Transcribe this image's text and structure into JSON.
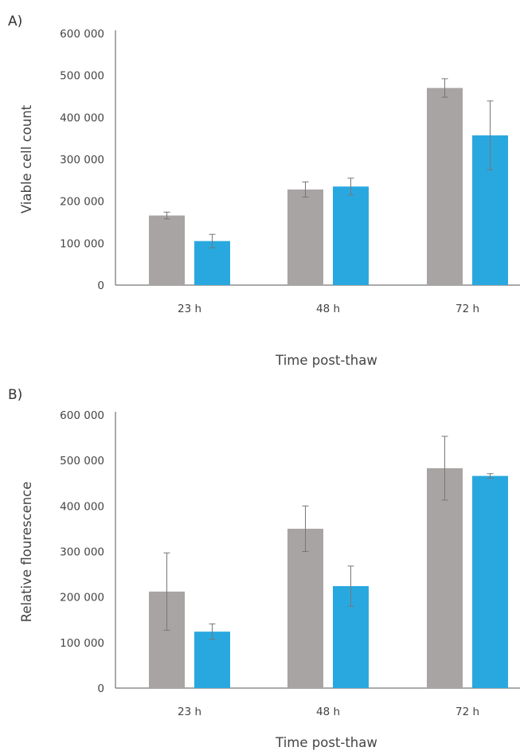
{
  "chart_data": [
    {
      "panel_label": "A)",
      "type": "bar",
      "xlabel": "Time post-thaw",
      "ylabel": "Viable cell count",
      "categories": [
        "23 h",
        "48 h",
        "72 h"
      ],
      "ylim": [
        0,
        600000
      ],
      "yticks": [
        {
          "value": 0,
          "label": "0"
        },
        {
          "value": 100000,
          "label": "100 000"
        },
        {
          "value": 200000,
          "label": "200 000"
        },
        {
          "value": 300000,
          "label": "300 000"
        },
        {
          "value": 400000,
          "label": "400 000"
        },
        {
          "value": 500000,
          "label": "500 000"
        },
        {
          "value": 600000,
          "label": "600 000"
        }
      ],
      "grid": false,
      "legend": "none",
      "series": [
        {
          "color": "#a8a4a3",
          "values": [
            166000,
            228000,
            470000
          ],
          "errors": [
            8000,
            18000,
            22000
          ]
        },
        {
          "color": "#29a8e0",
          "values": [
            105000,
            235000,
            357000
          ],
          "errors": [
            16000,
            20000,
            82000
          ]
        }
      ]
    },
    {
      "panel_label": "B)",
      "type": "bar",
      "xlabel": "Time post-thaw",
      "ylabel": "Relative flourescence",
      "categories": [
        "23 h",
        "48 h",
        "72 h"
      ],
      "ylim": [
        0,
        600000
      ],
      "yticks": [
        {
          "value": 0,
          "label": "0"
        },
        {
          "value": 100000,
          "label": "100 000"
        },
        {
          "value": 200000,
          "label": "200 000"
        },
        {
          "value": 300000,
          "label": "300 000"
        },
        {
          "value": 400000,
          "label": "400 000"
        },
        {
          "value": 500000,
          "label": "500 000"
        },
        {
          "value": 600000,
          "label": "600 000"
        }
      ],
      "grid": false,
      "legend": "none",
      "series": [
        {
          "color": "#a8a4a3",
          "values": [
            212000,
            350000,
            483000
          ],
          "errors": [
            85000,
            50000,
            70000
          ]
        },
        {
          "color": "#29a8e0",
          "values": [
            124000,
            224000,
            466000
          ],
          "errors": [
            17000,
            44000,
            5000
          ]
        }
      ]
    }
  ]
}
